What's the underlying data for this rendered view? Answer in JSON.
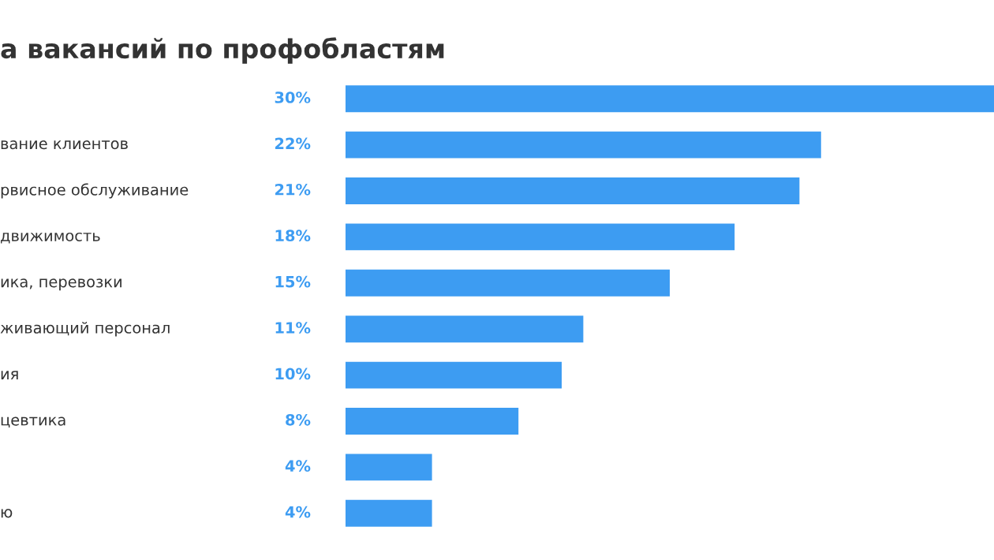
{
  "chart_data": {
    "type": "bar",
    "orientation": "horizontal",
    "title": "а вакансий по профобластям",
    "categories": [
      null,
      "вание клиентов",
      "рвисное обслуживание",
      "движимость",
      "ика, перевозки",
      "живающий персонал",
      "ия",
      "цевтика",
      null,
      "ю"
    ],
    "values": [
      30,
      22,
      21,
      18,
      15,
      11,
      10,
      8,
      4,
      4
    ],
    "value_labels": [
      "30%",
      "22%",
      "21%",
      "18%",
      "15%",
      "11%",
      "10%",
      "8%",
      "4%",
      "4%"
    ],
    "color": "#3d9cf2"
  }
}
